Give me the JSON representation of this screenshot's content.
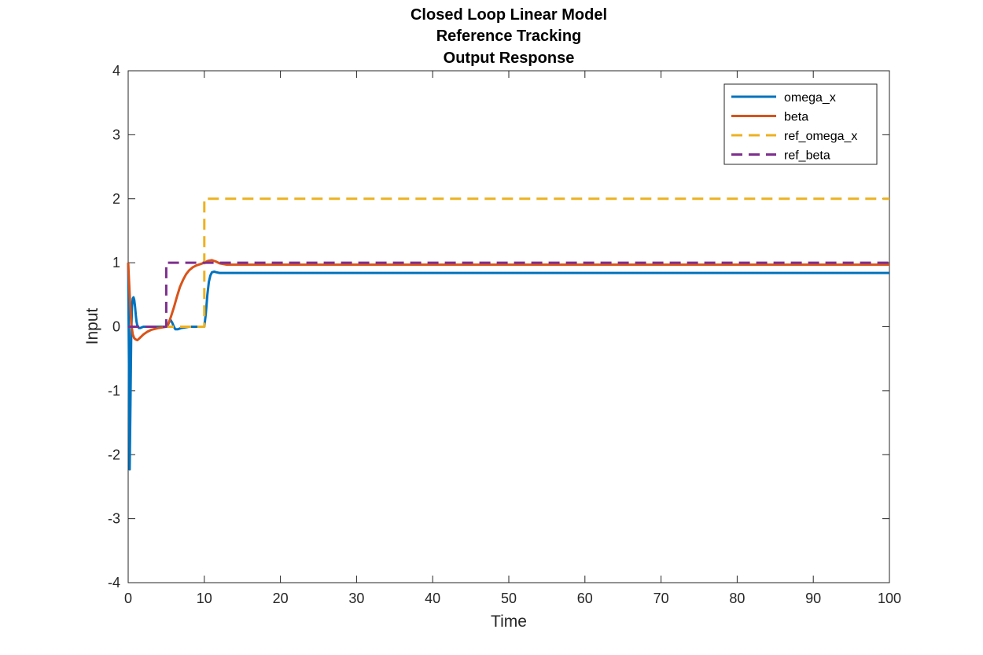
{
  "chart_data": {
    "type": "line",
    "title_lines": [
      "Closed Loop Linear Model",
      "Reference Tracking",
      "Output Response"
    ],
    "xlabel": "Time",
    "ylabel": "Input",
    "xlim": [
      0,
      100
    ],
    "ylim": [
      -4,
      4
    ],
    "xticks": [
      0,
      10,
      20,
      30,
      40,
      50,
      60,
      70,
      80,
      90,
      100
    ],
    "yticks": [
      -4,
      -3,
      -2,
      -1,
      0,
      1,
      2,
      3,
      4
    ],
    "grid": false,
    "legend_position": "top-right",
    "series": [
      {
        "name": "omega_x",
        "color": "#0072BD",
        "dash": "solid",
        "x": [
          0,
          0.1,
          0.2,
          0.3,
          0.4,
          0.5,
          0.6,
          0.7,
          0.8,
          0.9,
          1.0,
          1.1,
          1.2,
          1.4,
          1.6,
          1.8,
          2.0,
          2.5,
          3,
          4,
          5,
          5.2,
          5.4,
          5.6,
          5.8,
          6.0,
          6.2,
          6.5,
          7,
          8,
          9,
          10,
          10.2,
          10.4,
          10.6,
          10.8,
          11.0,
          11.3,
          11.6,
          12,
          13,
          15,
          20,
          30,
          40,
          50,
          60,
          70,
          80,
          90,
          100
        ],
        "y": [
          1.0,
          -0.6,
          -2.23,
          -1.2,
          -0.1,
          0.3,
          0.44,
          0.46,
          0.42,
          0.32,
          0.18,
          0.08,
          0.02,
          -0.02,
          -0.02,
          -0.01,
          0.0,
          0.0,
          0.0,
          0.0,
          0.0,
          0.02,
          0.08,
          0.1,
          0.06,
          0.0,
          -0.04,
          -0.04,
          -0.02,
          0.0,
          0.0,
          0.0,
          0.2,
          0.5,
          0.7,
          0.8,
          0.85,
          0.86,
          0.85,
          0.84,
          0.84,
          0.84,
          0.84,
          0.84,
          0.84,
          0.84,
          0.84,
          0.84,
          0.84,
          0.84,
          0.84
        ]
      },
      {
        "name": "beta",
        "color": "#D95319",
        "dash": "solid",
        "x": [
          0,
          0.2,
          0.4,
          0.6,
          0.8,
          1.0,
          1.2,
          1.5,
          2.0,
          2.5,
          3,
          4,
          5,
          5.3,
          5.6,
          6.0,
          6.4,
          6.8,
          7.2,
          7.6,
          8.0,
          8.5,
          9,
          9.5,
          10,
          10.5,
          11,
          11.5,
          12,
          13,
          14,
          20,
          30,
          40,
          50,
          60,
          70,
          80,
          90,
          100
        ],
        "y": [
          1.0,
          0.5,
          0.05,
          -0.12,
          -0.18,
          -0.2,
          -0.21,
          -0.18,
          -0.12,
          -0.08,
          -0.05,
          -0.02,
          0.0,
          0.05,
          0.15,
          0.3,
          0.47,
          0.62,
          0.73,
          0.82,
          0.88,
          0.93,
          0.96,
          0.98,
          1.0,
          1.03,
          1.04,
          1.02,
          0.99,
          0.97,
          0.97,
          0.97,
          0.97,
          0.97,
          0.97,
          0.97,
          0.97,
          0.97,
          0.97,
          0.97
        ]
      },
      {
        "name": "ref_omega_x",
        "color": "#EDB120",
        "dash": "dashed",
        "x": [
          0,
          10,
          10,
          100
        ],
        "y": [
          0,
          0,
          2,
          2
        ]
      },
      {
        "name": "ref_beta",
        "color": "#7E2F8E",
        "dash": "dashed",
        "x": [
          0,
          5,
          5,
          100
        ],
        "y": [
          0,
          0,
          1,
          1
        ]
      }
    ]
  }
}
